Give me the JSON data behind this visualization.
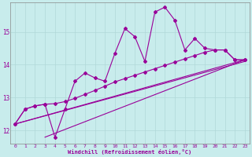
{
  "xlabel": "Windchill (Refroidissement éolien,°C)",
  "xlim": [
    -0.5,
    23.5
  ],
  "ylim": [
    11.6,
    15.9
  ],
  "xticks": [
    0,
    1,
    2,
    3,
    4,
    5,
    6,
    7,
    8,
    9,
    10,
    11,
    12,
    13,
    14,
    15,
    16,
    17,
    18,
    19,
    20,
    21,
    22,
    23
  ],
  "yticks": [
    12,
    13,
    14,
    15
  ],
  "bg_color": "#c8ecec",
  "line_color": "#990099",
  "grid_color": "#b0d8d8",
  "zigzag_data": [
    12.2,
    12.65,
    12.75,
    12.8,
    11.8,
    12.65,
    13.5,
    13.75,
    13.6,
    13.5,
    14.35,
    15.1,
    14.85,
    14.1,
    15.6,
    15.75,
    15.35,
    14.45,
    14.8,
    14.5,
    14.45,
    14.45,
    14.15,
    14.15
  ],
  "smooth_data1": [
    12.2,
    12.65,
    12.75,
    12.8,
    12.82,
    12.88,
    12.98,
    13.1,
    13.22,
    13.35,
    13.48,
    13.58,
    13.68,
    13.78,
    13.88,
    13.98,
    14.08,
    14.18,
    14.28,
    14.38,
    14.45,
    14.45,
    14.15,
    14.15
  ],
  "straight_line1": [
    [
      0,
      12.2
    ],
    [
      23,
      14.15
    ]
  ],
  "straight_line2": [
    [
      0,
      12.2
    ],
    [
      23,
      14.15
    ]
  ],
  "straight_line3": [
    [
      3,
      11.8
    ],
    [
      23,
      14.15
    ]
  ]
}
